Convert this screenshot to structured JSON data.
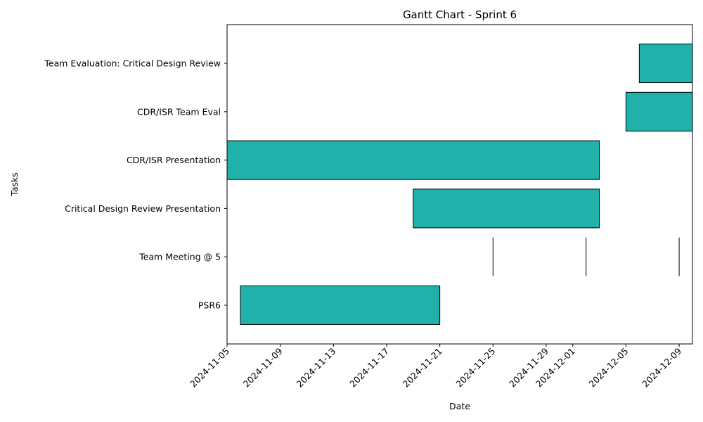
{
  "chart_data": {
    "type": "gantt",
    "title": "Gantt Chart - Sprint 6",
    "xlabel": "Date",
    "ylabel": "Tasks",
    "xlim": [
      "2024-11-05",
      "2024-12-10"
    ],
    "x_ticks": [
      "2024-11-05",
      "2024-11-09",
      "2024-11-13",
      "2024-11-17",
      "2024-11-21",
      "2024-11-25",
      "2024-11-29",
      "2024-12-01",
      "2024-12-05",
      "2024-12-09"
    ],
    "grid": false,
    "bar_color": "#20b2aa",
    "edge_color": "#000000",
    "tasks": [
      {
        "name": "Team Evaluation: Critical Design Review",
        "segments": [
          {
            "start": "2024-12-06",
            "end": "2024-12-10"
          }
        ]
      },
      {
        "name": "CDR/ISR Team Eval",
        "segments": [
          {
            "start": "2024-12-05",
            "end": "2024-12-10"
          }
        ]
      },
      {
        "name": "CDR/ISR Presentation",
        "segments": [
          {
            "start": "2024-11-05",
            "end": "2024-12-03"
          }
        ]
      },
      {
        "name": "Critical Design Review Presentation",
        "segments": [
          {
            "start": "2024-11-19",
            "end": "2024-12-03"
          }
        ]
      },
      {
        "name": "Team Meeting @ 5",
        "segments": [
          {
            "start": "2024-11-25",
            "end": "2024-11-25"
          },
          {
            "start": "2024-12-02",
            "end": "2024-12-02"
          },
          {
            "start": "2024-12-09",
            "end": "2024-12-09"
          }
        ]
      },
      {
        "name": "PSR6",
        "segments": [
          {
            "start": "2024-11-06",
            "end": "2024-11-21"
          }
        ]
      }
    ]
  }
}
